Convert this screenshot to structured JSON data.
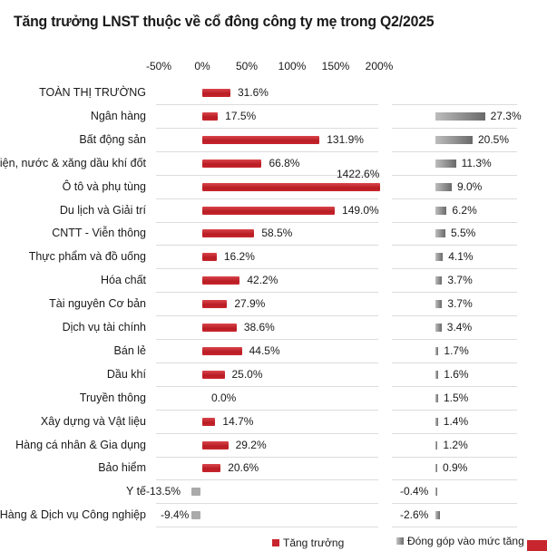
{
  "title": "Tăng trưởng LNST thuộc về cổ đông công ty mẹ trong Q2/2025",
  "axis": {
    "ticks": [
      "-50%",
      "0%",
      "50%",
      "100%",
      "150%",
      "200%"
    ]
  },
  "legend": {
    "growth": "Tăng trưởng",
    "contribution": "Đóng góp vào mức tăng"
  },
  "rows": [
    {
      "label": "TOÀN THỊ TRƯỜNG",
      "growth": "31.6%",
      "contribution": ""
    },
    {
      "label": "Ngân hàng",
      "growth": "17.5%",
      "contribution": "27.3%"
    },
    {
      "label": "Bất động sản",
      "growth": "131.9%",
      "contribution": "20.5%"
    },
    {
      "label": "Điện, nước & xăng dầu khí đốt",
      "growth": "66.8%",
      "contribution": "11.3%"
    },
    {
      "label": "Ô tô và phụ tùng",
      "growth": "1422.6%",
      "contribution": "9.0%"
    },
    {
      "label": "Du lịch và Giải trí",
      "growth": "149.0%",
      "contribution": "6.2%"
    },
    {
      "label": "CNTT - Viễn thông",
      "growth": "58.5%",
      "contribution": "5.5%"
    },
    {
      "label": "Thực phẩm và đồ uống",
      "growth": "16.2%",
      "contribution": "4.1%"
    },
    {
      "label": "Hóa chất",
      "growth": "42.2%",
      "contribution": "3.7%"
    },
    {
      "label": "Tài nguyên Cơ bản",
      "growth": "27.9%",
      "contribution": "3.7%"
    },
    {
      "label": "Dịch vụ tài chính",
      "growth": "38.6%",
      "contribution": "3.4%"
    },
    {
      "label": "Bán lẻ",
      "growth": "44.5%",
      "contribution": "1.7%"
    },
    {
      "label": "Dầu khí",
      "growth": "25.0%",
      "contribution": "1.6%"
    },
    {
      "label": "Truyền thông",
      "growth": "0.0%",
      "contribution": "1.5%"
    },
    {
      "label": "Xây dựng và Vật liệu",
      "growth": "14.7%",
      "contribution": "1.4%"
    },
    {
      "label": "Hàng cá nhân & Gia dụng",
      "growth": "29.2%",
      "contribution": "1.2%"
    },
    {
      "label": "Bảo hiểm",
      "growth": "20.6%",
      "contribution": "0.9%"
    },
    {
      "label": "Y tế",
      "growth": "-13.5%",
      "contribution": "-0.4%"
    },
    {
      "label": "Hàng & Dịch vụ Công nghiệp",
      "growth": "-9.4%",
      "contribution": "-2.6%"
    }
  ],
  "colors": {
    "growth": "#c8262e",
    "growth_negative": "#aaaaaa",
    "contribution": "#7a7a7a"
  },
  "chart_data": {
    "type": "bar",
    "orientation": "horizontal",
    "title": "Tăng trưởng LNST thuộc về cổ đông công ty mẹ trong Q2/2025",
    "xlabel": "",
    "ylabel": "",
    "xlim": [
      -50,
      200
    ],
    "x_ticks": [
      "-50%",
      "0%",
      "50%",
      "100%",
      "150%",
      "200%"
    ],
    "grid": true,
    "legend_position": "bottom",
    "categories": [
      "TOÀN THỊ TRƯỜNG",
      "Ngân hàng",
      "Bất động sản",
      "Điện, nước & xăng dầu khí đốt",
      "Ô tô và phụ tùng",
      "Du lịch và Giải trí",
      "CNTT - Viễn thông",
      "Thực phẩm và đồ uống",
      "Hóa chất",
      "Tài nguyên Cơ bản",
      "Dịch vụ tài chính",
      "Bán lẻ",
      "Dầu khí",
      "Truyền thông",
      "Xây dựng và Vật liệu",
      "Hàng cá nhân & Gia dụng",
      "Bảo hiểm",
      "Y tế",
      "Hàng & Dịch vụ Công nghiệp"
    ],
    "series": [
      {
        "name": "Tăng trưởng",
        "unit": "%",
        "values": [
          31.6,
          17.5,
          131.9,
          66.8,
          1422.6,
          149.0,
          58.5,
          16.2,
          42.2,
          27.9,
          38.6,
          44.5,
          25.0,
          0.0,
          14.7,
          29.2,
          20.6,
          -13.5,
          -9.4
        ]
      },
      {
        "name": "Đóng góp vào mức tăng",
        "unit": "%",
        "values": [
          null,
          27.3,
          20.5,
          11.3,
          9.0,
          6.2,
          5.5,
          4.1,
          3.7,
          3.7,
          3.4,
          1.7,
          1.6,
          1.5,
          1.4,
          1.2,
          0.9,
          -0.4,
          -2.6
        ]
      }
    ],
    "annotations": [
      "Ô tô và phụ tùng bar truncated at axis max; labeled 1422.6%"
    ]
  }
}
